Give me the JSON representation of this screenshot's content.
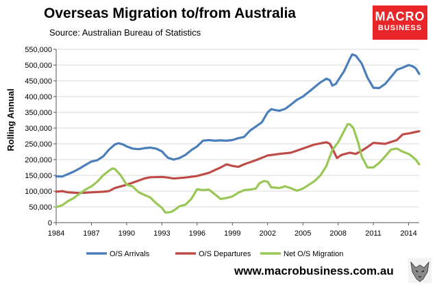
{
  "header": {
    "title": "Overseas Migration to/from Australia",
    "subtitle": "Source: Australian Bureau of Statistics"
  },
  "logo": {
    "line1": "MACRO",
    "line2": "BUSINESS"
  },
  "footer": {
    "url": "www.macrobusiness.com.au"
  },
  "colors": {
    "arrivals": "#4a7ebb",
    "departures": "#be4b48",
    "net": "#98c755",
    "logo_bg": "#e8262a"
  },
  "chart_data": {
    "type": "line",
    "title": "Overseas Migration to/from Australia",
    "xlabel": "",
    "ylabel": "Rolling Annual",
    "xlim": [
      1984,
      2014.9
    ],
    "ylim": [
      0,
      550000
    ],
    "x_ticks": [
      "1984",
      "1987",
      "1990",
      "1993",
      "1996",
      "1999",
      "2002",
      "2005",
      "2008",
      "2011",
      "2014"
    ],
    "y_ticks": [
      "0",
      "50,000",
      "100,000",
      "150,000",
      "200,000",
      "250,000",
      "300,000",
      "350,000",
      "400,000",
      "450,000",
      "500,000",
      "550,000"
    ],
    "grid": true,
    "legend": "bottom",
    "series": [
      {
        "name": "O/S Arrivals",
        "points": [
          [
            1984,
            147000
          ],
          [
            1984.5,
            146000
          ],
          [
            1985,
            154000
          ],
          [
            1985.5,
            162000
          ],
          [
            1986,
            172000
          ],
          [
            1986.5,
            183000
          ],
          [
            1987,
            194000
          ],
          [
            1987.5,
            198000
          ],
          [
            1988,
            210000
          ],
          [
            1988.5,
            232000
          ],
          [
            1989,
            248000
          ],
          [
            1989.3,
            252000
          ],
          [
            1989.7,
            248000
          ],
          [
            1990,
            242000
          ],
          [
            1990.5,
            235000
          ],
          [
            1991,
            233000
          ],
          [
            1991.5,
            236000
          ],
          [
            1992,
            238000
          ],
          [
            1992.5,
            235000
          ],
          [
            1993,
            226000
          ],
          [
            1993.5,
            206000
          ],
          [
            1994,
            200000
          ],
          [
            1994.5,
            205000
          ],
          [
            1995,
            215000
          ],
          [
            1995.5,
            230000
          ],
          [
            1996,
            242000
          ],
          [
            1996.5,
            260000
          ],
          [
            1997,
            262000
          ],
          [
            1997.5,
            260000
          ],
          [
            1998,
            261000
          ],
          [
            1998.5,
            260000
          ],
          [
            1999,
            262000
          ],
          [
            1999.5,
            268000
          ],
          [
            2000,
            272000
          ],
          [
            2000.5,
            292000
          ],
          [
            2001,
            305000
          ],
          [
            2001.5,
            318000
          ],
          [
            2002,
            350000
          ],
          [
            2002.3,
            360000
          ],
          [
            2002.7,
            357000
          ],
          [
            2003,
            355000
          ],
          [
            2003.5,
            361000
          ],
          [
            2004,
            375000
          ],
          [
            2004.5,
            390000
          ],
          [
            2005,
            400000
          ],
          [
            2005.5,
            415000
          ],
          [
            2006,
            430000
          ],
          [
            2006.5,
            445000
          ],
          [
            2007,
            457000
          ],
          [
            2007.3,
            452000
          ],
          [
            2007.5,
            435000
          ],
          [
            2007.8,
            440000
          ],
          [
            2008,
            452000
          ],
          [
            2008.5,
            480000
          ],
          [
            2009,
            520000
          ],
          [
            2009.2,
            534000
          ],
          [
            2009.5,
            530000
          ],
          [
            2010,
            505000
          ],
          [
            2010.5,
            460000
          ],
          [
            2011,
            428000
          ],
          [
            2011.5,
            427000
          ],
          [
            2012,
            440000
          ],
          [
            2012.5,
            462000
          ],
          [
            2013,
            485000
          ],
          [
            2013.5,
            492000
          ],
          [
            2014,
            500000
          ],
          [
            2014.3,
            497000
          ],
          [
            2014.6,
            490000
          ],
          [
            2014.9,
            472000
          ]
        ]
      },
      {
        "name": "O/S Departures",
        "points": [
          [
            1984,
            98000
          ],
          [
            1984.5,
            100000
          ],
          [
            1985,
            96000
          ],
          [
            1986,
            94000
          ],
          [
            1987,
            96000
          ],
          [
            1988,
            98000
          ],
          [
            1988.5,
            100000
          ],
          [
            1989,
            110000
          ],
          [
            1990,
            120000
          ],
          [
            1991,
            133000
          ],
          [
            1991.5,
            140000
          ],
          [
            1992,
            144000
          ],
          [
            1993,
            145000
          ],
          [
            1993.5,
            143000
          ],
          [
            1994,
            140000
          ],
          [
            1995,
            143000
          ],
          [
            1996,
            148000
          ],
          [
            1997,
            158000
          ],
          [
            1998,
            175000
          ],
          [
            1998.5,
            185000
          ],
          [
            1999,
            180000
          ],
          [
            1999.5,
            177000
          ],
          [
            2000,
            185000
          ],
          [
            2001,
            198000
          ],
          [
            2002,
            213000
          ],
          [
            2003,
            218000
          ],
          [
            2004,
            222000
          ],
          [
            2005,
            235000
          ],
          [
            2006,
            248000
          ],
          [
            2007,
            255000
          ],
          [
            2007.3,
            250000
          ],
          [
            2007.6,
            228000
          ],
          [
            2007.9,
            205000
          ],
          [
            2008.3,
            215000
          ],
          [
            2009,
            222000
          ],
          [
            2009.5,
            218000
          ],
          [
            2010,
            228000
          ],
          [
            2010.5,
            240000
          ],
          [
            2011,
            253000
          ],
          [
            2012,
            250000
          ],
          [
            2013,
            262000
          ],
          [
            2013.5,
            280000
          ],
          [
            2014,
            283000
          ],
          [
            2014.5,
            287000
          ],
          [
            2014.9,
            290000
          ]
        ]
      },
      {
        "name": "Net O/S Migration",
        "points": [
          [
            1984,
            49000
          ],
          [
            1984.5,
            55000
          ],
          [
            1985,
            68000
          ],
          [
            1985.5,
            78000
          ],
          [
            1986,
            92000
          ],
          [
            1986.5,
            105000
          ],
          [
            1987,
            115000
          ],
          [
            1987.5,
            130000
          ],
          [
            1988,
            150000
          ],
          [
            1988.5,
            165000
          ],
          [
            1988.8,
            172000
          ],
          [
            1989,
            170000
          ],
          [
            1989.5,
            150000
          ],
          [
            1990,
            120000
          ],
          [
            1990.5,
            115000
          ],
          [
            1991,
            97000
          ],
          [
            1991.5,
            88000
          ],
          [
            1992,
            80000
          ],
          [
            1992.5,
            62000
          ],
          [
            1993,
            47000
          ],
          [
            1993.3,
            32000
          ],
          [
            1993.7,
            33000
          ],
          [
            1994,
            38000
          ],
          [
            1994.5,
            52000
          ],
          [
            1995,
            57000
          ],
          [
            1995.5,
            75000
          ],
          [
            1996,
            106000
          ],
          [
            1996.5,
            103000
          ],
          [
            1997,
            105000
          ],
          [
            1997.5,
            90000
          ],
          [
            1998,
            75000
          ],
          [
            1998.5,
            78000
          ],
          [
            1999,
            83000
          ],
          [
            1999.5,
            95000
          ],
          [
            2000,
            103000
          ],
          [
            2000.5,
            105000
          ],
          [
            2001,
            108000
          ],
          [
            2001.3,
            125000
          ],
          [
            2001.7,
            132000
          ],
          [
            2002,
            130000
          ],
          [
            2002.3,
            112000
          ],
          [
            2003,
            110000
          ],
          [
            2003.5,
            115000
          ],
          [
            2004,
            109000
          ],
          [
            2004.5,
            101000
          ],
          [
            2005,
            108000
          ],
          [
            2005.5,
            120000
          ],
          [
            2006,
            132000
          ],
          [
            2006.5,
            150000
          ],
          [
            2007,
            180000
          ],
          [
            2007.5,
            230000
          ],
          [
            2008,
            255000
          ],
          [
            2008.5,
            290000
          ],
          [
            2008.8,
            312000
          ],
          [
            2009,
            312000
          ],
          [
            2009.3,
            300000
          ],
          [
            2009.7,
            255000
          ],
          [
            2010,
            210000
          ],
          [
            2010.5,
            175000
          ],
          [
            2011,
            175000
          ],
          [
            2011.5,
            190000
          ],
          [
            2012,
            210000
          ],
          [
            2012.5,
            232000
          ],
          [
            2013,
            235000
          ],
          [
            2013.5,
            225000
          ],
          [
            2014,
            218000
          ],
          [
            2014.3,
            210000
          ],
          [
            2014.6,
            200000
          ],
          [
            2014.9,
            185000
          ]
        ]
      }
    ]
  }
}
